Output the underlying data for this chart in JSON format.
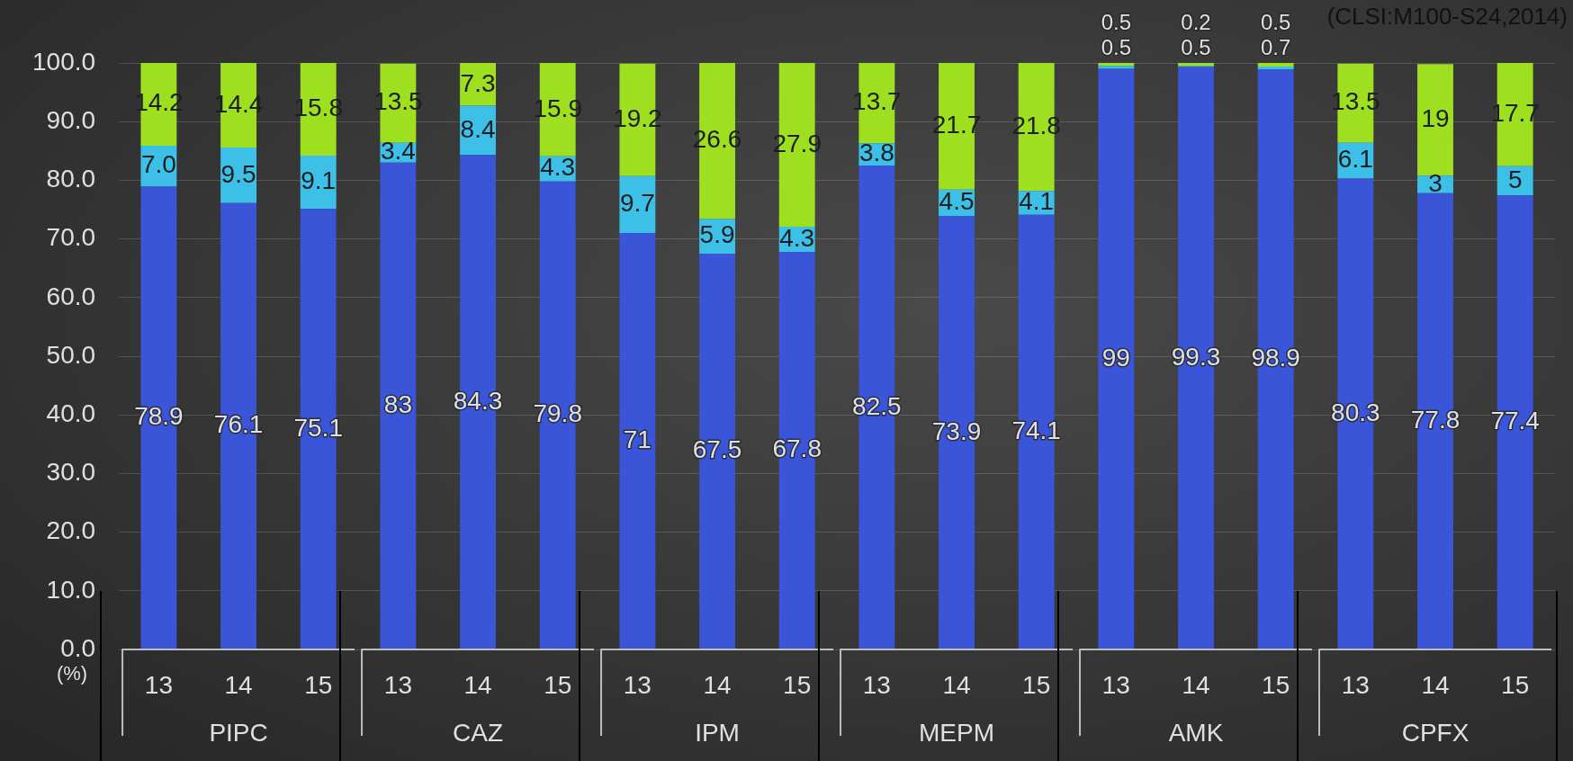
{
  "chart_data": {
    "type": "bar",
    "stacked": true,
    "ylabel": "(%)",
    "categories": [
      "13",
      "14",
      "15",
      "13",
      "14",
      "15",
      "13",
      "14",
      "15",
      "13",
      "14",
      "15",
      "13",
      "14",
      "15",
      "13",
      "14",
      "15"
    ],
    "series": [
      {
        "color": "#3a55d8",
        "values": [
          78.9,
          76.1,
          75.1,
          83,
          84.3,
          79.8,
          71,
          67.5,
          67.8,
          82.5,
          73.9,
          74.1,
          99,
          99.3,
          98.9,
          80.3,
          77.8,
          77.4
        ],
        "value_labels": [
          "78.9",
          "76.1",
          "75.1",
          "83",
          "84.3",
          "79.8",
          "71",
          "67.5",
          "67.8",
          "82.5",
          "73.9",
          "74.1",
          "99",
          "99.3",
          "98.9",
          "80.3",
          "77.8",
          "77.4"
        ]
      },
      {
        "color": "#3cc0e8",
        "values": [
          7.0,
          9.5,
          9.1,
          3.4,
          8.4,
          4.3,
          9.7,
          5.9,
          4.3,
          3.8,
          4.5,
          4.1,
          0.5,
          0.2,
          0.5,
          6.1,
          3,
          5
        ],
        "value_labels": [
          "7.0",
          "9.5",
          "9.1",
          "3.4",
          "8.4",
          "4.3",
          "9.7",
          "5.9",
          "4.3",
          "3.8",
          "4.5",
          "4.1",
          "0.5",
          "0.2",
          "0.5",
          "6.1",
          "3",
          "5"
        ]
      },
      {
        "color": "#9ee020",
        "values": [
          14.2,
          14.4,
          15.8,
          13.5,
          7.3,
          15.9,
          19.2,
          26.6,
          27.9,
          13.7,
          21.7,
          21.8,
          0.5,
          0.5,
          0.7,
          13.5,
          19,
          17.7
        ],
        "value_labels": [
          "14.2",
          "14.4",
          "15.8",
          "13.5",
          "7.3",
          "15.9",
          "19.2",
          "26.6",
          "27.9",
          "13.7",
          "21.7",
          "21.8",
          "0.5",
          "0.5",
          "0.7",
          "13.5",
          "19",
          "17.7"
        ]
      }
    ],
    "ylim": [
      0,
      100
    ],
    "yticks": [
      {
        "value": 0,
        "label": "0.0"
      },
      {
        "value": 10,
        "label": "10.0"
      },
      {
        "value": 20,
        "label": "20.0"
      },
      {
        "value": 30,
        "label": "30.0"
      },
      {
        "value": 40,
        "label": "40.0"
      },
      {
        "value": 50,
        "label": "50.0"
      },
      {
        "value": 60,
        "label": "60.0"
      },
      {
        "value": 70,
        "label": "70.0"
      },
      {
        "value": 80,
        "label": "80.0"
      },
      {
        "value": 90,
        "label": "90.0"
      },
      {
        "value": 100,
        "label": "100.0"
      }
    ],
    "grid": "y",
    "legend": false,
    "annotations": [
      "PIPC",
      "CAZ",
      "IPM",
      "MEPM",
      "AMK",
      "CPFX",
      "(CLSI:M100-S24,2014)"
    ]
  }
}
